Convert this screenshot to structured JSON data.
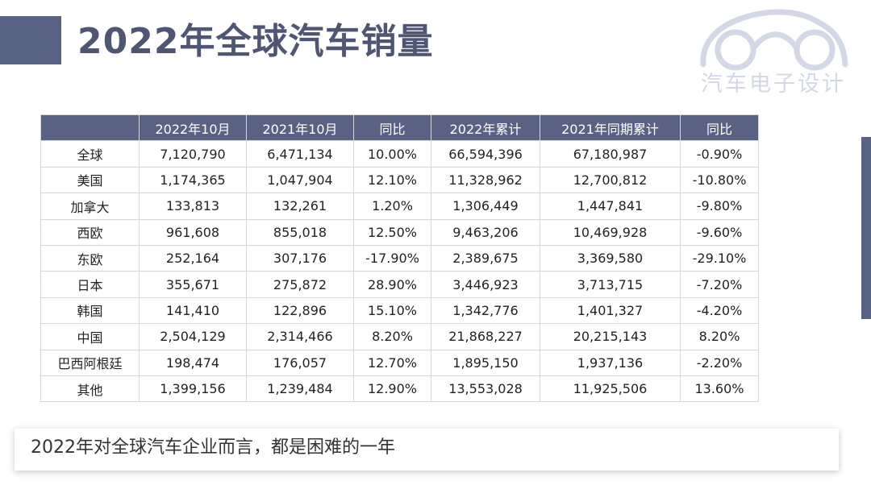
{
  "title": "2022年全球汽车销量",
  "logo": {
    "text": "汽车电子设计",
    "icon": "car-outline-icon"
  },
  "colors": {
    "accent": "#5a6283",
    "logo": "#d4d8e6"
  },
  "table": {
    "headers": [
      "",
      "2022年10月",
      "2021年10月",
      "同比",
      "2022年累计",
      "2021年同期累计",
      "同比"
    ],
    "rows": [
      [
        "全球",
        "7,120,790",
        "6,471,134",
        "10.00%",
        "66,594,396",
        "67,180,987",
        "-0.90%"
      ],
      [
        "美国",
        "1,174,365",
        "1,047,904",
        "12.10%",
        "11,328,962",
        "12,700,812",
        "-10.80%"
      ],
      [
        "加拿大",
        "133,813",
        "132,261",
        "1.20%",
        "1,306,449",
        "1,447,841",
        "-9.80%"
      ],
      [
        "西欧",
        "961,608",
        "855,018",
        "12.50%",
        "9,463,206",
        "10,469,928",
        "-9.60%"
      ],
      [
        "东欧",
        "252,164",
        "307,176",
        "-17.90%",
        "2,389,675",
        "3,369,580",
        "-29.10%"
      ],
      [
        "日本",
        "355,671",
        "275,872",
        "28.90%",
        "3,446,923",
        "3,713,715",
        "-7.20%"
      ],
      [
        "韩国",
        "141,410",
        "122,896",
        "15.10%",
        "1,342,776",
        "1,401,327",
        "-4.20%"
      ],
      [
        "中国",
        "2,504,129",
        "2,314,466",
        "8.20%",
        "21,868,227",
        "20,215,143",
        "8.20%"
      ],
      [
        "巴西阿根廷",
        "198,474",
        "176,057",
        "12.70%",
        "1,895,150",
        "1,937,136",
        "-2.20%"
      ],
      [
        "其他",
        "1,399,156",
        "1,239,484",
        "12.90%",
        "13,553,028",
        "11,925,506",
        "13.60%"
      ]
    ]
  },
  "caption": "2022年对全球汽车企业而言，都是困难的一年"
}
